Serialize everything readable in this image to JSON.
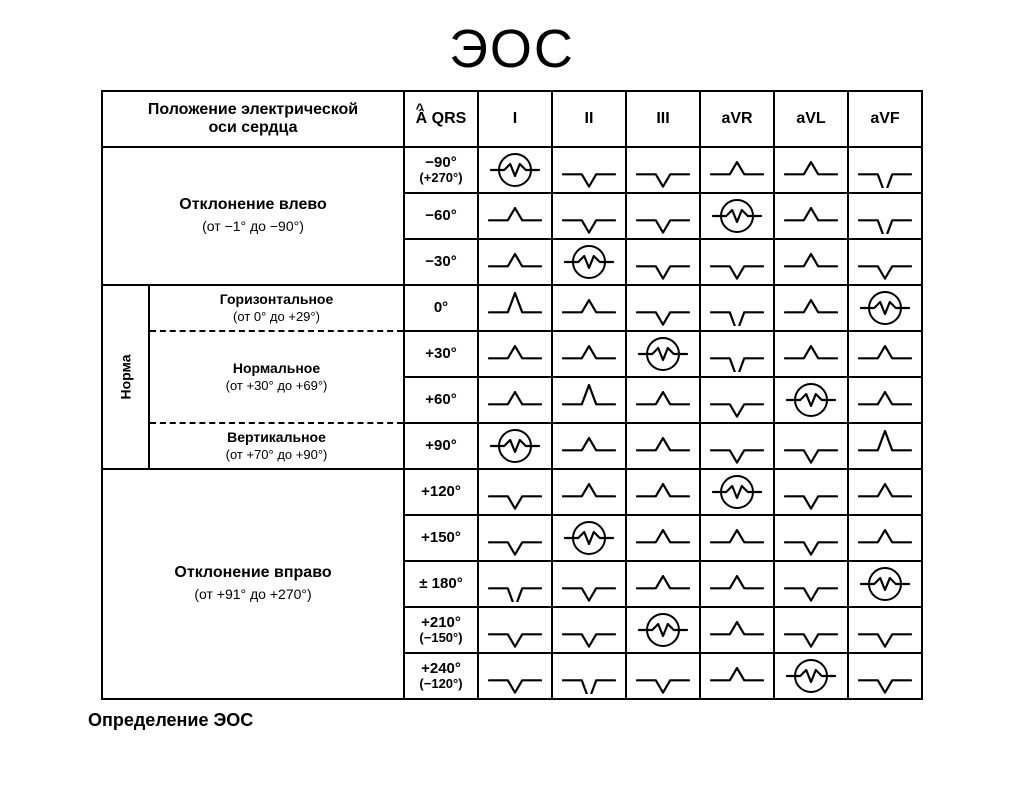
{
  "title": "ЭОС",
  "caption": "Определение ЭОС",
  "headers": {
    "axis_position": "Положение электрической\nоси сердца",
    "aqrs": "Â QRS",
    "leads": [
      "I",
      "II",
      "III",
      "aVR",
      "aVL",
      "aVF"
    ]
  },
  "groups": {
    "left": {
      "label": "Отклонение влево",
      "range": "(от −1° до −90°)"
    },
    "norm_vertical_label": "Норма",
    "norm_sub": [
      {
        "label": "Горизонтальное",
        "range": "(от 0° до +29°)"
      },
      {
        "label": "Нормальное",
        "range": "(от +30° до +69°)"
      },
      {
        "label": "Вертикальное",
        "range": "(от +70° до +90°)"
      }
    ],
    "right": {
      "label": "Отклонение вправо",
      "range": "(от +91° до +270°)"
    }
  },
  "angles": [
    {
      "main": "−90°",
      "alt": "(+270°)"
    },
    {
      "main": "−60°",
      "alt": ""
    },
    {
      "main": "−30°",
      "alt": ""
    },
    {
      "main": "0°",
      "alt": ""
    },
    {
      "main": "+30°",
      "alt": ""
    },
    {
      "main": "+60°",
      "alt": ""
    },
    {
      "main": "+90°",
      "alt": ""
    },
    {
      "main": "+120°",
      "alt": ""
    },
    {
      "main": "+150°",
      "alt": ""
    },
    {
      "main": "± 180°",
      "alt": ""
    },
    {
      "main": "+210°",
      "alt": "(−150°)"
    },
    {
      "main": "+240°",
      "alt": "(−120°)"
    }
  ],
  "wave_stroke": "#000000",
  "wave_stroke_width": 2.2,
  "circle_stroke_width": 2.0,
  "rows": [
    {
      "leads": [
        {
          "t": "iso",
          "c": true
        },
        {
          "t": "dn"
        },
        {
          "t": "dn"
        },
        {
          "t": "up"
        },
        {
          "t": "up"
        },
        {
          "t": "dnb"
        }
      ]
    },
    {
      "leads": [
        {
          "t": "up"
        },
        {
          "t": "dn"
        },
        {
          "t": "dn"
        },
        {
          "t": "iso",
          "c": true
        },
        {
          "t": "up"
        },
        {
          "t": "dnb"
        }
      ]
    },
    {
      "leads": [
        {
          "t": "up"
        },
        {
          "t": "iso",
          "c": true
        },
        {
          "t": "dn"
        },
        {
          "t": "dn"
        },
        {
          "t": "up"
        },
        {
          "t": "dn"
        }
      ]
    },
    {
      "leads": [
        {
          "t": "upb"
        },
        {
          "t": "up"
        },
        {
          "t": "dn"
        },
        {
          "t": "dnb"
        },
        {
          "t": "up"
        },
        {
          "t": "iso",
          "c": true
        }
      ]
    },
    {
      "leads": [
        {
          "t": "up"
        },
        {
          "t": "up"
        },
        {
          "t": "iso",
          "c": true
        },
        {
          "t": "dnb"
        },
        {
          "t": "up"
        },
        {
          "t": "up"
        }
      ]
    },
    {
      "leads": [
        {
          "t": "up"
        },
        {
          "t": "upb"
        },
        {
          "t": "up"
        },
        {
          "t": "dn"
        },
        {
          "t": "iso",
          "c": true
        },
        {
          "t": "up"
        }
      ]
    },
    {
      "leads": [
        {
          "t": "iso",
          "c": true
        },
        {
          "t": "up"
        },
        {
          "t": "up"
        },
        {
          "t": "dn"
        },
        {
          "t": "dn"
        },
        {
          "t": "upb"
        }
      ]
    },
    {
      "leads": [
        {
          "t": "dn"
        },
        {
          "t": "up"
        },
        {
          "t": "up"
        },
        {
          "t": "iso",
          "c": true
        },
        {
          "t": "dn"
        },
        {
          "t": "up"
        }
      ]
    },
    {
      "leads": [
        {
          "t": "dn"
        },
        {
          "t": "iso",
          "c": true
        },
        {
          "t": "up"
        },
        {
          "t": "up"
        },
        {
          "t": "dn"
        },
        {
          "t": "up"
        }
      ]
    },
    {
      "leads": [
        {
          "t": "dnb"
        },
        {
          "t": "dn"
        },
        {
          "t": "up"
        },
        {
          "t": "up"
        },
        {
          "t": "dn"
        },
        {
          "t": "iso",
          "c": true
        }
      ]
    },
    {
      "leads": [
        {
          "t": "dn"
        },
        {
          "t": "dn"
        },
        {
          "t": "iso",
          "c": true
        },
        {
          "t": "up"
        },
        {
          "t": "dn"
        },
        {
          "t": "dn"
        }
      ]
    },
    {
      "leads": [
        {
          "t": "dn"
        },
        {
          "t": "dnb"
        },
        {
          "t": "dn"
        },
        {
          "t": "up"
        },
        {
          "t": "iso",
          "c": true
        },
        {
          "t": "dn"
        }
      ]
    }
  ]
}
